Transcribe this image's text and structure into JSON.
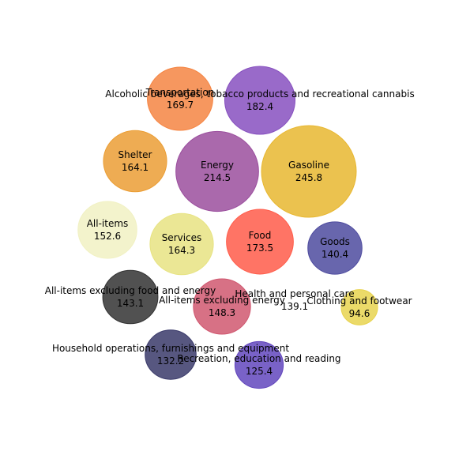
{
  "chart_data": {
    "type": "bubble",
    "title": "",
    "grid": false,
    "axes_visible": false,
    "series": [
      {
        "name": "Gasoline",
        "value": 245.8,
        "color": "#e8b730"
      },
      {
        "name": "Energy",
        "value": 214.5,
        "color": "#9b4f9e"
      },
      {
        "name": "Alcoholic beverages, tobacco products and recreational cannabis",
        "value": 182.4,
        "color": "#8750bf"
      },
      {
        "name": "Food",
        "value": 173.5,
        "color": "#ff5c4a"
      },
      {
        "name": "Transportation",
        "value": 169.7,
        "color": "#f58543"
      },
      {
        "name": "Services",
        "value": 164.3,
        "color": "#e7e383"
      },
      {
        "name": "Shelter",
        "value": 164.1,
        "color": "#eb9e35"
      },
      {
        "name": "All-items",
        "value": 152.6,
        "color": "#f1f1c3"
      },
      {
        "name": "All-items excluding energy",
        "value": 148.3,
        "color": "#d05870"
      },
      {
        "name": "All-items excluding food and energy",
        "value": 143.1,
        "color": "#333333"
      },
      {
        "name": "Goods",
        "value": 140.4,
        "color": "#4e4b9f"
      },
      {
        "name": "Health and personal care",
        "value": 139.1,
        "color": "#ffffff"
      },
      {
        "name": "Household operations, furnishings and equipment",
        "value": 132.2,
        "color": "#3a3a6a"
      },
      {
        "name": "Recreation, education and reading",
        "value": 125.4,
        "color": "#6246bd"
      },
      {
        "name": "Clothing and footwear",
        "value": 94.6,
        "color": "#e8d34f"
      }
    ]
  }
}
